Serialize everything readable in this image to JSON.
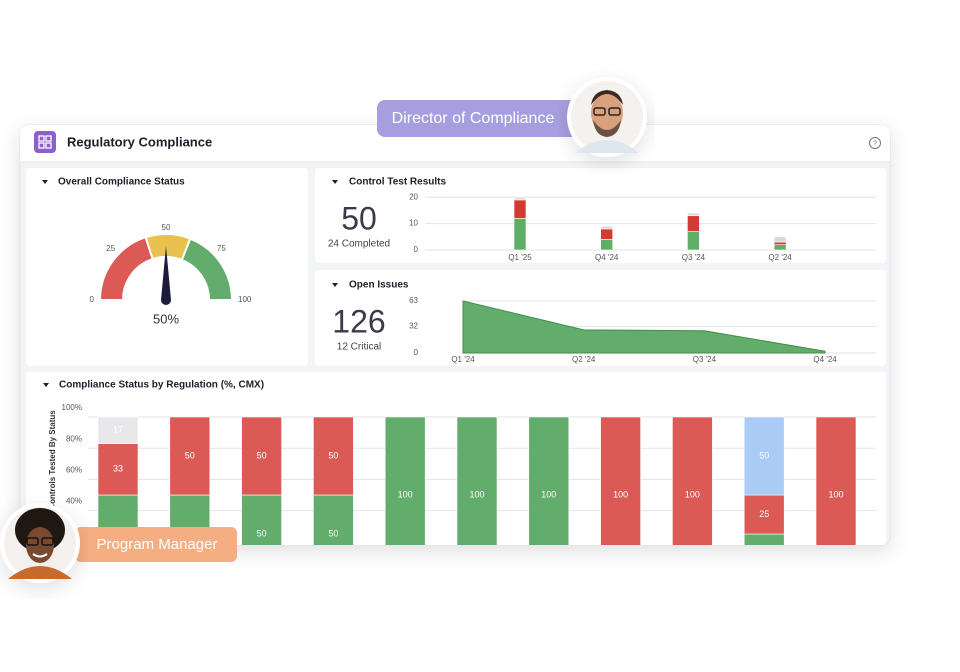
{
  "header": {
    "title": "Regulatory Compliance"
  },
  "roles": {
    "director": "Director of Compliance",
    "manager": "Program Manager"
  },
  "kpis": [
    {
      "value": 50,
      "label": "24 Completed"
    },
    {
      "value": 126,
      "label": "12 Critical"
    }
  ],
  "chart_data": [
    {
      "type": "gauge",
      "title": "Overall Compliance Status",
      "values": [
        50
      ],
      "value_labels": [
        "50%"
      ],
      "ylim": [
        0,
        100
      ],
      "yticks": [
        0,
        25,
        50,
        75,
        100
      ],
      "bands": [
        {
          "from": 0,
          "to": 40,
          "color": "#dc5a55"
        },
        {
          "from": 40,
          "to": 62,
          "color": "#e9c14f"
        },
        {
          "from": 62,
          "to": 100,
          "color": "#62ad6b"
        }
      ],
      "needle_color": "#1d1b3a"
    },
    {
      "type": "stacked_bar",
      "title": "Control Test Results",
      "categories": [
        "Q1 '25",
        "Q4 '24",
        "Q3 '24",
        "Q2 '24"
      ],
      "series": [
        {
          "color": "#5fae68",
          "values": [
            12,
            4,
            7,
            2
          ]
        },
        {
          "color": "#d23b32",
          "values": [
            7,
            4,
            6,
            1
          ]
        },
        {
          "color": "#d9d9dd",
          "values": [
            1,
            1,
            1,
            2
          ]
        }
      ],
      "ylim": [
        0,
        22
      ],
      "yticks": [
        0,
        10,
        20
      ],
      "grid": true
    },
    {
      "type": "area",
      "title": "Open Issues",
      "categories": [
        "Q1 '24",
        "Q2 '24",
        "Q3 '24",
        "Q4 '24"
      ],
      "values": [
        63,
        28,
        27,
        2
      ],
      "color": "#62ad6b",
      "ylim": [
        0,
        63
      ],
      "yticks": [
        0,
        32,
        63
      ],
      "grid": true
    },
    {
      "type": "stacked_bar",
      "title": "Compliance Status by Regulation (%, CMX)",
      "y_label": "Controls Tested By Status",
      "categories": [
        null,
        null,
        null,
        null,
        null,
        null,
        null,
        null,
        null,
        null,
        null
      ],
      "series": [
        {
          "color": "#62ad6b",
          "values": [
            50,
            50,
            50,
            50,
            100,
            100,
            100,
            null,
            null,
            25,
            null
          ]
        },
        {
          "color": "#dc5a55",
          "values": [
            33,
            50,
            50,
            50,
            null,
            null,
            null,
            100,
            100,
            25,
            100
          ]
        },
        {
          "color": "#a9cbf6",
          "values": [
            null,
            null,
            null,
            null,
            null,
            null,
            null,
            null,
            null,
            50,
            null
          ]
        },
        {
          "color": "#e8e8ea",
          "values": [
            17,
            null,
            null,
            null,
            null,
            null,
            null,
            null,
            null,
            null,
            null
          ]
        }
      ],
      "ylim": [
        0,
        100
      ],
      "yticks": [
        {
          "value": 40,
          "label": "40%"
        },
        {
          "value": 60,
          "label": "60%"
        },
        {
          "value": 80,
          "label": "80%"
        },
        {
          "value": 100,
          "label": "100%"
        }
      ],
      "grid": true,
      "data_labels": true
    }
  ]
}
